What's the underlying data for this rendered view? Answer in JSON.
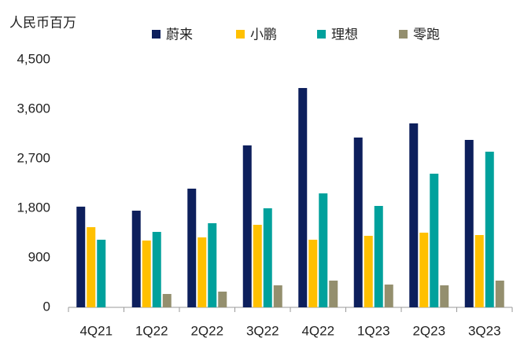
{
  "chart_data": {
    "type": "bar",
    "y_axis_label": "人民币百万",
    "categories": [
      "4Q21",
      "1Q22",
      "2Q22",
      "3Q22",
      "4Q22",
      "1Q23",
      "2Q23",
      "3Q23"
    ],
    "series": [
      {
        "name": "蔚来",
        "color": "#0d1f5c",
        "values": [
          1830,
          1757,
          2157,
          2943,
          3986,
          3086,
          3343,
          3043
        ]
      },
      {
        "name": "小鹏",
        "color": "#ffc000",
        "values": [
          1457,
          1214,
          1271,
          1500,
          1229,
          1300,
          1357,
          1314
        ]
      },
      {
        "name": "理想",
        "color": "#00a19c",
        "values": [
          1229,
          1371,
          1529,
          1800,
          2071,
          1843,
          2429,
          2829
        ]
      },
      {
        "name": "零跑",
        "color": "#948f6e",
        "values": [
          null,
          243,
          286,
          400,
          486,
          414,
          400,
          486
        ]
      }
    ],
    "ylim": [
      0,
      4500
    ],
    "yticks": [
      0,
      900,
      {
        "value": 1800,
        "label": "1,800"
      },
      {
        "value": 2700,
        "label": "2,700"
      },
      {
        "value": 3600,
        "label": "3,600"
      },
      {
        "value": 4500,
        "label": "4,500"
      }
    ],
    "grid": false
  }
}
